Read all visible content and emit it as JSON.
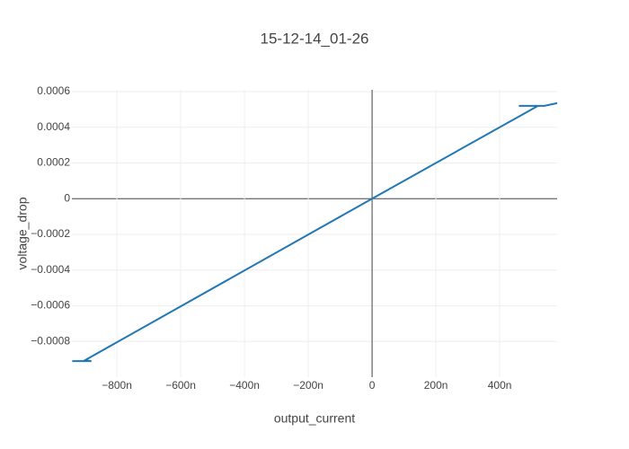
{
  "chart_data": {
    "type": "line",
    "title": "15-12-14_01-26",
    "x_label": "output_current",
    "y_label": "voltage_drop",
    "x": [
      -9.4e-07,
      -8.8e-07,
      -9e-07,
      0,
      5.2e-07,
      4.6e-07,
      5.4e-07,
      5.8e-07
    ],
    "series": [
      {
        "name": "voltage_drop",
        "color": "#1f77b4",
        "values": [
          -0.00091,
          -0.00091,
          -0.000905,
          0,
          0.00052,
          0.00052,
          0.00052,
          0.000535
        ]
      }
    ],
    "xlim": [
      -9.41e-07,
      5.8e-07
    ],
    "ylim": [
      -0.001,
      0.00061
    ],
    "xticks": [
      {
        "value": -8e-07,
        "label": "−800n"
      },
      {
        "value": -6e-07,
        "label": "−600n"
      },
      {
        "value": -4e-07,
        "label": "−400n"
      },
      {
        "value": -2e-07,
        "label": "−200n"
      },
      0,
      {
        "value": 2e-07,
        "label": "200n"
      },
      {
        "value": 4e-07,
        "label": "400n"
      }
    ],
    "yticks": [
      {
        "value": -0.0008,
        "label": "−0.0008"
      },
      {
        "value": -0.0006,
        "label": "−0.0006"
      },
      {
        "value": -0.0004,
        "label": "−0.0004"
      },
      {
        "value": -0.0002,
        "label": "−0.0002"
      },
      0,
      0.0002,
      0.0004,
      0.0006
    ],
    "grid": true
  }
}
